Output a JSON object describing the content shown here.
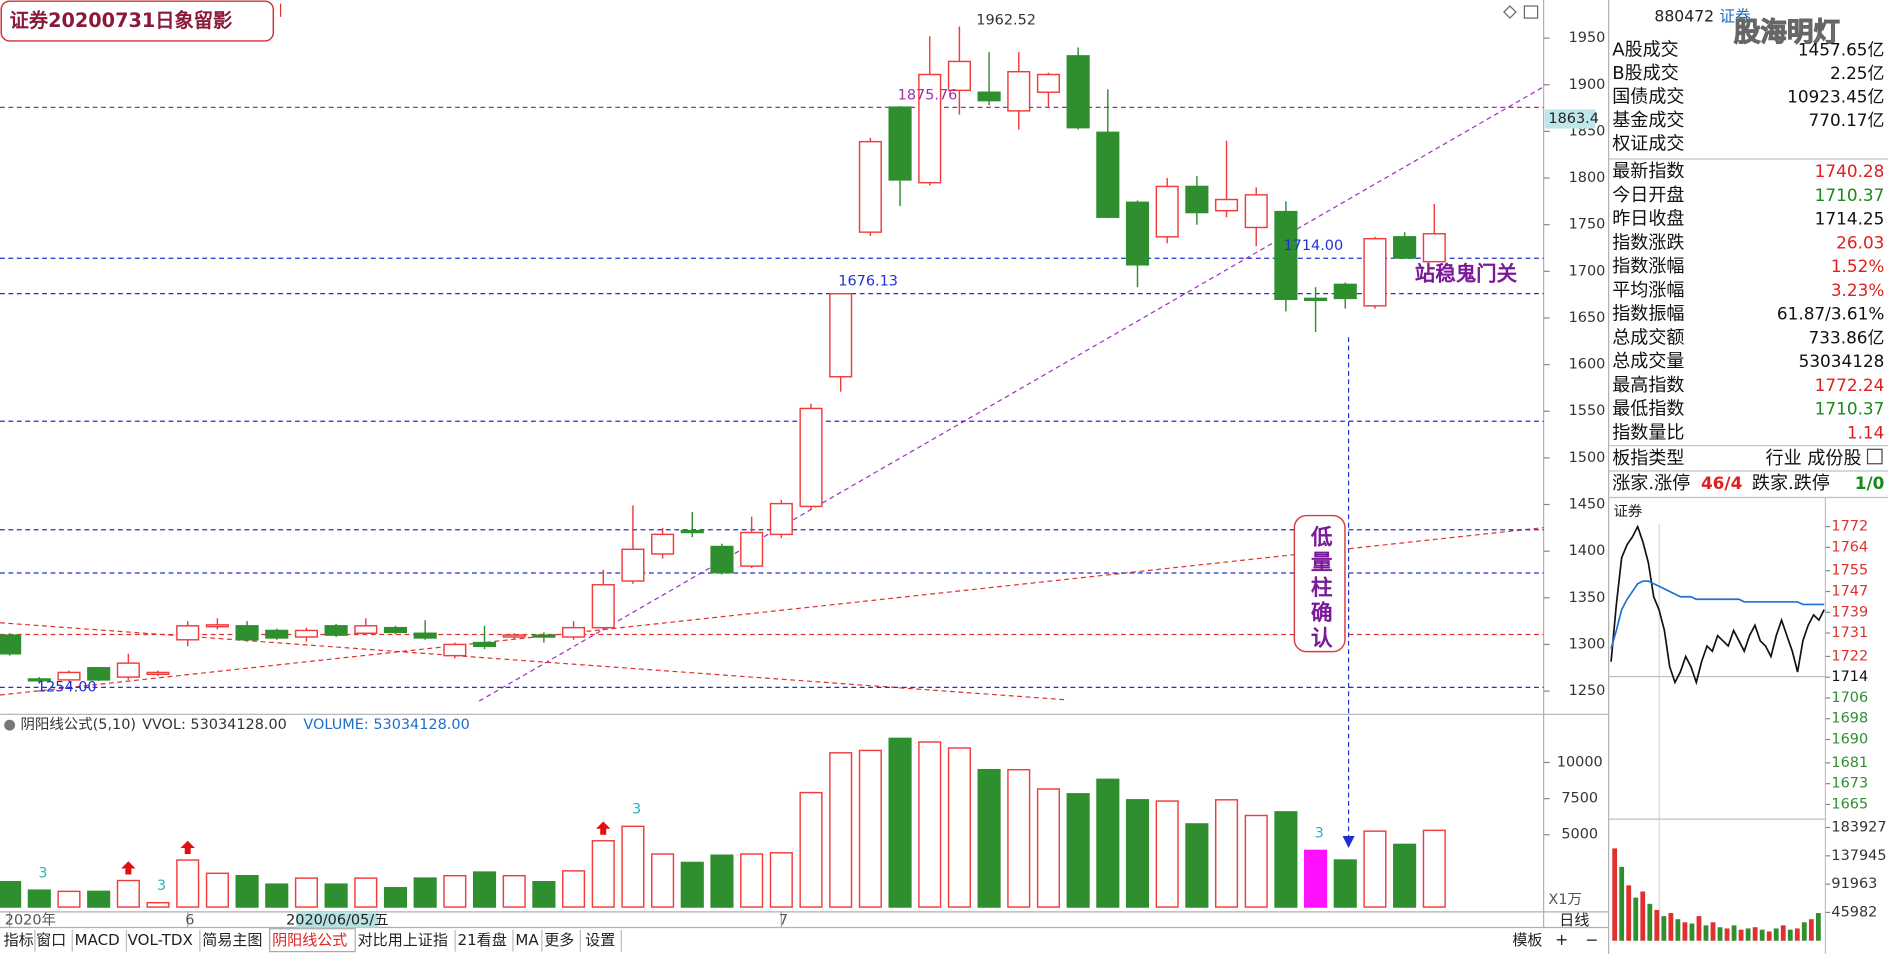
{
  "title": "证券20200731日象留影",
  "chart_data": [
    {
      "type": "candlestick",
      "categories": [
        "2020年",
        null,
        null,
        null,
        null,
        null,
        "6",
        null,
        null,
        null,
        null,
        null,
        null,
        null,
        null,
        null,
        null,
        null,
        null,
        null,
        null,
        null,
        null,
        null,
        null,
        null,
        "7",
        null,
        null,
        null,
        null,
        null,
        null,
        null,
        null,
        null,
        null,
        null,
        null,
        null,
        null,
        null,
        null,
        null,
        null,
        null,
        null,
        null,
        null
      ],
      "open": [
        1310,
        1263,
        1262,
        1275,
        1265,
        1268,
        1305,
        1320,
        1320,
        1315,
        1308,
        1320,
        1312,
        1318,
        1312,
        1288,
        1302,
        1308,
        1310,
        1308,
        1318,
        1368,
        1397,
        1422,
        1405,
        1384,
        1418,
        1448,
        1587,
        1742,
        1876,
        1795,
        1894,
        1892,
        1872,
        1892,
        1931,
        1849,
        1774,
        1737,
        1791,
        1765,
        1747,
        1764,
        1671,
        1686,
        1663,
        1737,
        1710.37
      ],
      "high": [
        1312,
        1265,
        1272,
        1276,
        1290,
        1272,
        1325,
        1328,
        1325,
        1317,
        1318,
        1322,
        1328,
        1320,
        1326,
        1302,
        1320,
        1312,
        1313,
        1325,
        1380,
        1449,
        1425,
        1442,
        1408,
        1437,
        1455,
        1558,
        1676.13,
        1843,
        1877,
        1952,
        1962.52,
        1935,
        1935,
        1913,
        1940,
        1895,
        1776,
        1800,
        1802,
        1840,
        1790,
        1775,
        1683,
        1688,
        1737,
        1742,
        1772.24
      ],
      "low": [
        1288,
        1258,
        1260,
        1261,
        1262,
        1266,
        1298,
        1316,
        1303,
        1305,
        1303,
        1308,
        1310,
        1311,
        1305,
        1285,
        1295,
        1306,
        1302,
        1305,
        1315,
        1365,
        1392,
        1415,
        1375,
        1382,
        1414,
        1445,
        1571,
        1738,
        1770,
        1792,
        1868,
        1878,
        1852,
        1875,
        1852,
        1757,
        1683,
        1730,
        1750,
        1758,
        1727,
        1657,
        1635,
        1660,
        1660,
        1715,
        1710.37
      ],
      "close": [
        1290,
        1262,
        1270,
        1262,
        1280,
        1270,
        1320,
        1321,
        1305,
        1307,
        1315,
        1310,
        1320,
        1313,
        1307,
        1300,
        1298,
        1310,
        1308,
        1318,
        1364,
        1402,
        1418,
        1420,
        1377,
        1420,
        1451,
        1553,
        1676,
        1839,
        1798,
        1911,
        1925,
        1883,
        1914,
        1911,
        1854,
        1758,
        1707,
        1791,
        1763,
        1777,
        1782,
        1670,
        1669,
        1671,
        1735,
        1714.25,
        1740.28
      ],
      "up_color": "#f23c3c",
      "down_color": "#2f8f2f",
      "ylim": [
        1229,
        1987
      ],
      "yticks": [
        1250,
        1300,
        1350,
        1400,
        1450,
        1500,
        1550,
        1600,
        1650,
        1700,
        1750,
        1800,
        1850,
        1900,
        1950
      ],
      "hlines": [
        {
          "value": 1875.76,
          "color": "#a030a0"
        },
        {
          "value": 1714,
          "color": "#2030d0"
        },
        {
          "value": 1676.13,
          "color": "#2030d0"
        },
        {
          "value": 1539.3,
          "color": "#2030d0"
        },
        {
          "value": 1423,
          "color": "#2030d0"
        },
        {
          "value": 1376.6,
          "color": "#2030d0"
        },
        {
          "value": 1310.7,
          "color": "#e03030"
        },
        {
          "value": 1254,
          "color": "#2030d0"
        }
      ],
      "annotations": [
        {
          "index": 32,
          "value": 1962.52,
          "label": "1962.52",
          "color": "#333333"
        },
        {
          "index": 30,
          "value": 1875.76,
          "label": "1875.76",
          "color": "#a030a0"
        },
        {
          "index": 28,
          "value": 1676.13,
          "label": "1676.13",
          "color": "#2030d0"
        },
        {
          "index": 43,
          "value": 1714,
          "label": "1714.00",
          "color": "#2030d0"
        },
        {
          "index": 1,
          "value": 1254,
          "label": "1254.00",
          "color": "#2030d0"
        }
      ],
      "cursor_value": 1863.4,
      "cursor": {
        "index": 11,
        "label": "2020/06/05/五"
      },
      "notes": [
        "站稳鬼门关",
        "低量柱确认"
      ]
    },
    {
      "type": "volume",
      "indicator": "阴阳线公式(5,10)",
      "readouts": [
        "VVOL: 53034128.00",
        "VOLUME: 53034128.00"
      ],
      "values": [
        1750,
        1167,
        1083,
        1083,
        1833,
        300,
        3250,
        2333,
        2167,
        1583,
        2000,
        1583,
        2000,
        1333,
        2000,
        2167,
        2417,
        2167,
        1750,
        2500,
        4583,
        5583,
        3667,
        3083,
        3583,
        3667,
        3750,
        7917,
        10667,
        10833,
        11667,
        11417,
        11000,
        9500,
        9500,
        8167,
        7833,
        8833,
        7417,
        7333,
        5750,
        7417,
        6333,
        6583,
        3917,
        3250,
        5250,
        4333,
        5303.4128
      ],
      "highlight": {
        "index": 44,
        "color": "#ff10ff"
      },
      "markers": [
        {
          "index": 1,
          "label": "3"
        },
        {
          "index": 5,
          "label": "3"
        },
        {
          "index": 21,
          "label": "3"
        },
        {
          "index": 44,
          "label": "3"
        }
      ],
      "arrows": [
        4,
        6,
        20
      ],
      "unit_label": "X1万",
      "ylim": [
        0,
        13167
      ],
      "yticks": [
        5000,
        7500,
        10000
      ]
    },
    {
      "type": "line",
      "title": "证券",
      "reference": 1714.25,
      "series": [
        {
          "name": "price",
          "color": "#111111",
          "values": [
            1720,
            1742,
            1760,
            1765,
            1768,
            1772,
            1766,
            1758,
            1745,
            1740,
            1732,
            1718,
            1712,
            1716,
            1722,
            1718,
            1712,
            1720,
            1726,
            1724,
            1730,
            1728,
            1726,
            1732,
            1728,
            1724,
            1730,
            1734,
            1728,
            1726,
            1722,
            1730,
            1736,
            1730,
            1724,
            1716,
            1728,
            1734,
            1738,
            1736,
            1740
          ]
        },
        {
          "name": "average",
          "color": "#2070d0",
          "values": [
            1725,
            1732,
            1740,
            1744,
            1747,
            1750,
            1751,
            1751,
            1750,
            1749,
            1748,
            1747,
            1746,
            1745,
            1745,
            1745,
            1744,
            1744,
            1744,
            1744,
            1744,
            1744,
            1744,
            1744,
            1744,
            1743,
            1743,
            1743,
            1743,
            1743,
            1743,
            1743,
            1743,
            1743,
            1743,
            1743,
            1742,
            1742,
            1742,
            1742,
            1742
          ]
        }
      ],
      "ylim": [
        1664,
        1773
      ],
      "yticks": [
        1772,
        1764,
        1755,
        1747,
        1739,
        1731,
        1722,
        1714,
        1706,
        1698,
        1690,
        1681,
        1673,
        1665
      ],
      "up_color": "#e03030",
      "down_color": "#2f8f2f"
    },
    {
      "type": "bar",
      "values": [
        150000,
        120000,
        90000,
        70000,
        80000,
        60000,
        50000,
        40000,
        45000,
        35000,
        30000,
        28000,
        40000,
        25000,
        30000,
        22000,
        20000,
        25000,
        18000,
        20000,
        22000,
        18000,
        15000,
        20000,
        25000,
        18000,
        20000,
        30000,
        35000,
        45000
      ],
      "colors": [
        "#e03030",
        "#2f8f2f"
      ],
      "ylim": [
        0,
        183927
      ],
      "yticks": [
        45982,
        91963,
        137945,
        183927
      ]
    }
  ],
  "info_panel": {
    "code": "880472",
    "name": "证券",
    "watermark": "股海明灯",
    "market_rows": [
      {
        "label": "A股成交",
        "value": "1457.65亿",
        "color": "#111111"
      },
      {
        "label": "B股成交",
        "value": "2.25亿",
        "color": "#111111"
      },
      {
        "label": "国债成交",
        "value": "10923.45亿",
        "color": "#111111"
      },
      {
        "label": "基金成交",
        "value": "770.17亿",
        "color": "#111111"
      },
      {
        "label": "权证成交"
      }
    ],
    "index_rows": [
      {
        "label": "最新指数",
        "value": "1740.28",
        "color": "#e02020"
      },
      {
        "label": "今日开盘",
        "value": "1710.37",
        "color": "#1a8a1a"
      },
      {
        "label": "昨日收盘",
        "value": "1714.25",
        "color": "#111111"
      },
      {
        "label": "指数涨跌",
        "value": "26.03",
        "color": "#e02020"
      },
      {
        "label": "指数涨幅",
        "value": "1.52%",
        "color": "#e02020"
      },
      {
        "label": "平均涨幅",
        "value": "3.23%",
        "color": "#e02020"
      },
      {
        "label": "指数振幅",
        "value": "61.87/3.61%",
        "color": "#111111"
      },
      {
        "label": "总成交额",
        "value": "733.86亿",
        "color": "#111111"
      },
      {
        "label": "总成交量",
        "value": "53034128",
        "color": "#111111"
      },
      {
        "label": "最高指数",
        "value": "1772.24",
        "color": "#e02020"
      },
      {
        "label": "最低指数",
        "value": "1710.37",
        "color": "#1a8a1a"
      },
      {
        "label": "指数量比",
        "value": "1.14",
        "color": "#e02020"
      }
    ],
    "type_row": {
      "label": "板指类型",
      "value": "行业 成份股"
    },
    "breadth_row": {
      "label": "涨家.涨停",
      "value": "46/4",
      "label2": "跌家.跌停",
      "value2": "1/0"
    }
  },
  "toolbar": {
    "tabs": [
      "指标",
      "窗口",
      "MACD",
      "VOL-TDX",
      "简易主图",
      "阴阳线公式",
      "对比用上证指",
      "21看盘",
      "MA",
      "更多",
      "设置"
    ],
    "active": 5,
    "right": [
      "模板",
      "+",
      "−"
    ],
    "period": "日线"
  }
}
